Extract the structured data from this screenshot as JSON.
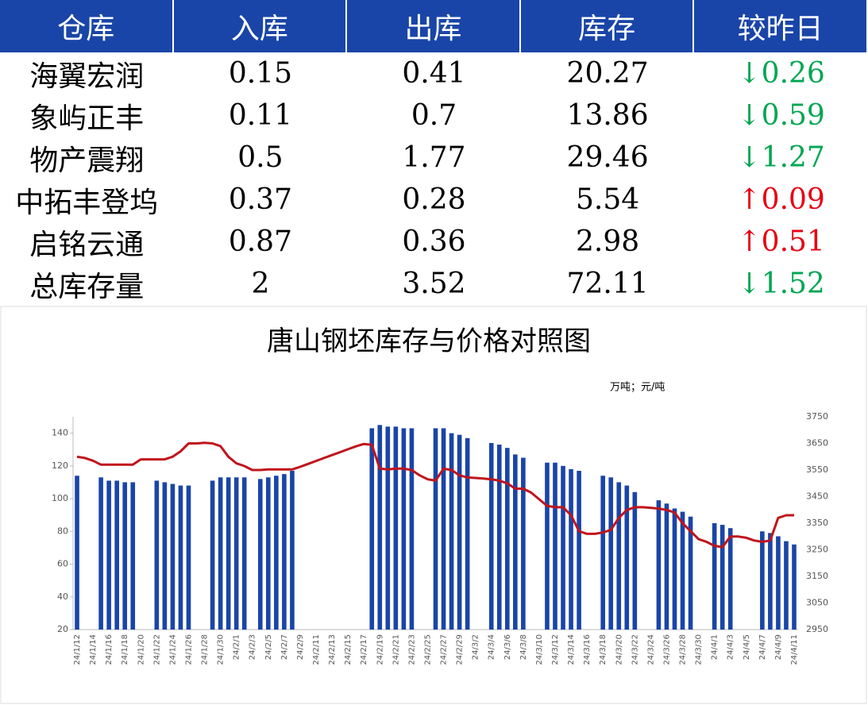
{
  "table": {
    "header": [
      "仓库",
      "入库",
      "出库",
      "库存",
      "较昨日"
    ],
    "rows": [
      [
        "海翼宏润",
        "0.15",
        "0.41",
        "20.27",
        "↓0.26"
      ],
      [
        "象屿正丰",
        "0.11",
        "0.7",
        "13.86",
        "↓0.59"
      ],
      [
        "物产震翔",
        "0.5",
        "1.77",
        "29.46",
        "↓1.27"
      ],
      [
        "中拓丰登坞",
        "0.37",
        "0.28",
        "5.54",
        "↑0.09"
      ],
      [
        "启铭云通",
        "0.87",
        "0.36",
        "2.98",
        "↑0.51"
      ],
      [
        "总库存量",
        "2",
        "3.52",
        "72.11",
        "↓1.52"
      ]
    ]
  },
  "chart_data": {
    "type": "bar",
    "title": "唐山钢坯库存与价格对照图",
    "unit_label": "万吨；元/吨",
    "categories": [
      "24/1/12",
      null,
      "24/1/14",
      null,
      "24/1/16",
      null,
      "24/1/18",
      null,
      "24/1/20",
      null,
      "24/1/22",
      null,
      "24/1/24",
      null,
      "24/1/26",
      null,
      "24/1/28",
      null,
      "24/1/30",
      null,
      "24/2/1",
      null,
      "24/2/3",
      null,
      "24/2/5",
      null,
      "24/2/7",
      null,
      "24/2/9",
      null,
      "24/2/11",
      null,
      "24/2/13",
      null,
      "24/2/15",
      null,
      "24/2/17",
      null,
      "24/2/19",
      null,
      "24/2/21",
      null,
      "24/2/23",
      null,
      "24/2/25",
      null,
      "24/2/27",
      null,
      "24/2/29",
      null,
      "24/3/2",
      null,
      "24/3/4",
      null,
      "24/3/6",
      null,
      "24/3/8",
      null,
      "24/3/10",
      null,
      "24/3/12",
      null,
      "24/3/14",
      null,
      "24/3/16",
      null,
      "24/3/18",
      null,
      "24/3/20",
      null,
      "24/3/22",
      null,
      "24/3/24",
      null,
      "24/3/26",
      null,
      "24/3/28",
      null,
      "24/3/30",
      null,
      "24/4/1",
      null,
      "24/4/3",
      null,
      "24/4/5",
      null,
      "24/4/7",
      null,
      "24/4/9",
      null,
      "24/4/11"
    ],
    "series": [
      {
        "color": "#1a45a8",
        "values": [
          114,
          null,
          null,
          113,
          111,
          111,
          110,
          110,
          null,
          null,
          111,
          110,
          109,
          108,
          108,
          null,
          null,
          111,
          113,
          113,
          113,
          113,
          null,
          112,
          113,
          114,
          115,
          117,
          null,
          null,
          null,
          null,
          null,
          null,
          null,
          null,
          null,
          143,
          145,
          144,
          144,
          143,
          143,
          null,
          null,
          143,
          143,
          140,
          139,
          137,
          null,
          null,
          134,
          133,
          131,
          127,
          125,
          null,
          null,
          122,
          122,
          120,
          118,
          117,
          null,
          null,
          114,
          113,
          110,
          108,
          104,
          null,
          null,
          99,
          97,
          94,
          92,
          89,
          null,
          null,
          85,
          84,
          82,
          null,
          null,
          null,
          80,
          79,
          77,
          74,
          72
        ]
      },
      {
        "type": "line",
        "axis": "y2",
        "color": "#c0141c",
        "values": [
          3600,
          3595,
          3585,
          3570,
          3570,
          3570,
          3570,
          3570,
          3590,
          3590,
          3590,
          3590,
          3600,
          3620,
          3650,
          3650,
          3652,
          3650,
          3640,
          3600,
          3575,
          3565,
          3550,
          3550,
          3552,
          3552,
          3552,
          3552,
          3562,
          3573,
          3584,
          3595,
          3606,
          3617,
          3628,
          3639,
          3648,
          3645,
          3555,
          3552,
          3555,
          3555,
          3550,
          3530,
          3515,
          3510,
          3555,
          3550,
          3530,
          3522,
          3520,
          3518,
          3515,
          3510,
          3500,
          3480,
          3480,
          3465,
          3440,
          3415,
          3410,
          3410,
          3380,
          3320,
          3310,
          3310,
          3315,
          3325,
          3370,
          3400,
          3410,
          3410,
          3408,
          3405,
          3400,
          3390,
          3350,
          3320,
          3290,
          3280,
          3265,
          3260,
          3300,
          3300,
          3295,
          3285,
          3280,
          3285,
          3370,
          3380,
          3380
        ]
      }
    ],
    "ylim": [
      20,
      150
    ],
    "yticks": [
      20,
      40,
      60,
      80,
      100,
      120,
      140
    ],
    "y2lim": [
      2950,
      3750
    ],
    "y2ticks": [
      2950,
      3050,
      3150,
      3250,
      3350,
      3450,
      3550,
      3650,
      3750
    ]
  }
}
